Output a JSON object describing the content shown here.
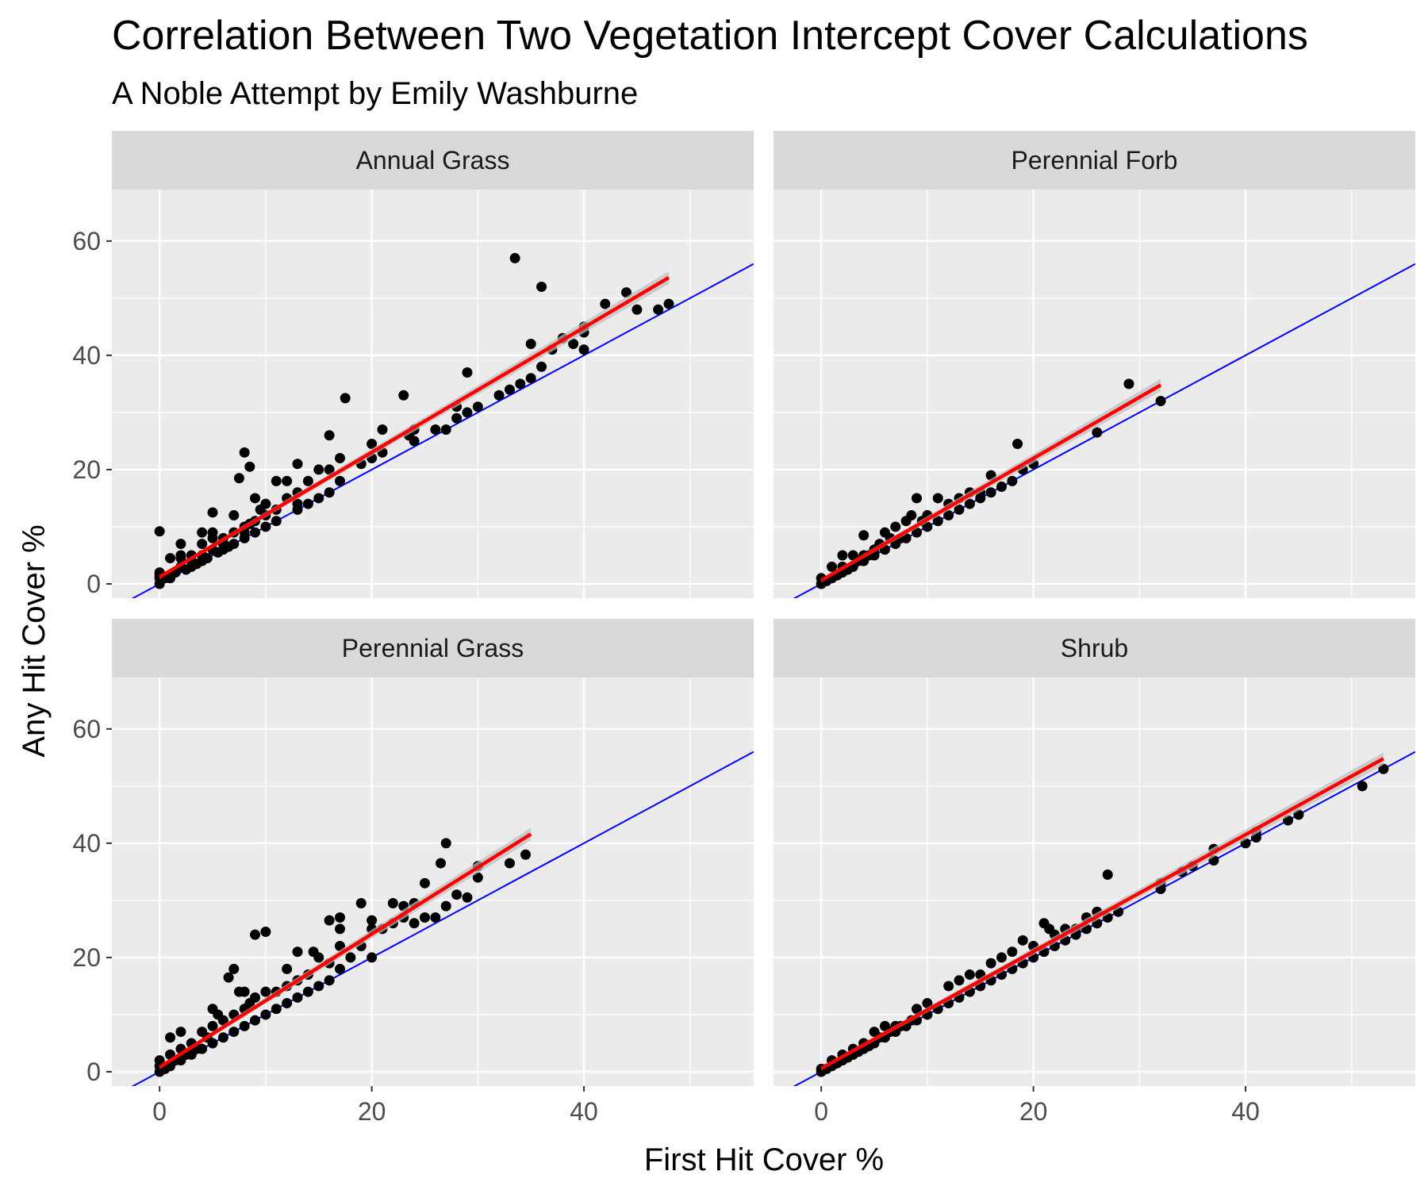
{
  "chart_data": {
    "type": "scatter",
    "title": "Correlation Between Two Vegetation Intercept Cover Calculations",
    "subtitle": "A Noble Attempt by Emily Washburne",
    "xlabel": "First Hit Cover %",
    "ylabel": "Any Hit Cover %",
    "xlim": [
      -4.5,
      56
    ],
    "ylim": [
      -2.5,
      69
    ],
    "xticks": [
      0,
      20,
      40
    ],
    "yticks": [
      0,
      20,
      40,
      60
    ],
    "grid": true,
    "legend": "none",
    "colors": {
      "panel_bg": "#ebebeb",
      "strip_bg": "#d9d9d9",
      "grid": "#ffffff",
      "points": "#000000",
      "identity_line": "#0000ff",
      "fit_line": "#ff0000",
      "confidence_band": "#bdbdbd"
    },
    "identity_line": {
      "slope": 1,
      "intercept": 0
    },
    "facets": [
      {
        "label": "Annual Grass",
        "fit": {
          "x": [
            0,
            48
          ],
          "y": [
            1.2,
            53.6
          ]
        },
        "points": [
          [
            0,
            9.2
          ],
          [
            0,
            0
          ],
          [
            0,
            1
          ],
          [
            0,
            1.5
          ],
          [
            0,
            2
          ],
          [
            0.5,
            1
          ],
          [
            1,
            4.5
          ],
          [
            1,
            1
          ],
          [
            1.5,
            2
          ],
          [
            2,
            3
          ],
          [
            2,
            4.5
          ],
          [
            2,
            5
          ],
          [
            2,
            7
          ],
          [
            2.5,
            2.5
          ],
          [
            3,
            3
          ],
          [
            3,
            4
          ],
          [
            3,
            5
          ],
          [
            3.5,
            3.5
          ],
          [
            4,
            4
          ],
          [
            4,
            5
          ],
          [
            4,
            7
          ],
          [
            4,
            9
          ],
          [
            4.5,
            4.5
          ],
          [
            5,
            6
          ],
          [
            5,
            8
          ],
          [
            5,
            9
          ],
          [
            5,
            12.5
          ],
          [
            5.5,
            5.5
          ],
          [
            6,
            6
          ],
          [
            6,
            7
          ],
          [
            6,
            8
          ],
          [
            6.5,
            6.5
          ],
          [
            7,
            7
          ],
          [
            7,
            9
          ],
          [
            7,
            12
          ],
          [
            7.5,
            18.5
          ],
          [
            8,
            8
          ],
          [
            8,
            9
          ],
          [
            8,
            10
          ],
          [
            8,
            23
          ],
          [
            8.5,
            20.5
          ],
          [
            8.5,
            10.5
          ],
          [
            9,
            9
          ],
          [
            9,
            11
          ],
          [
            9,
            15
          ],
          [
            9.5,
            13
          ],
          [
            10,
            10
          ],
          [
            10,
            12
          ],
          [
            10,
            14
          ],
          [
            11,
            11
          ],
          [
            11,
            13
          ],
          [
            11,
            18
          ],
          [
            12,
            15
          ],
          [
            12,
            18
          ],
          [
            13,
            13
          ],
          [
            13,
            14
          ],
          [
            13,
            16
          ],
          [
            13,
            21
          ],
          [
            14,
            14
          ],
          [
            14,
            18
          ],
          [
            15,
            15
          ],
          [
            15,
            20
          ],
          [
            16,
            16
          ],
          [
            16,
            20
          ],
          [
            16,
            26
          ],
          [
            17,
            18
          ],
          [
            17,
            22
          ],
          [
            17.5,
            32.5
          ],
          [
            19,
            21
          ],
          [
            20,
            22
          ],
          [
            20,
            24.5
          ],
          [
            21,
            23
          ],
          [
            21,
            27
          ],
          [
            23,
            33
          ],
          [
            23.5,
            26
          ],
          [
            24,
            25
          ],
          [
            24,
            27
          ],
          [
            26,
            27
          ],
          [
            27,
            27
          ],
          [
            28,
            29
          ],
          [
            28,
            31
          ],
          [
            29,
            30
          ],
          [
            29,
            37
          ],
          [
            30,
            31
          ],
          [
            32,
            33
          ],
          [
            33,
            34
          ],
          [
            33.5,
            57
          ],
          [
            34,
            35
          ],
          [
            35,
            36
          ],
          [
            35,
            42
          ],
          [
            36,
            38
          ],
          [
            36,
            52
          ],
          [
            37,
            41
          ],
          [
            38,
            43
          ],
          [
            39,
            42
          ],
          [
            40,
            41
          ],
          [
            40,
            44
          ],
          [
            40,
            45
          ],
          [
            42,
            49
          ],
          [
            44,
            51
          ],
          [
            45,
            48
          ],
          [
            47,
            48
          ],
          [
            48,
            49
          ]
        ]
      },
      {
        "label": "Perennial Forb",
        "fit": {
          "x": [
            0,
            32
          ],
          "y": [
            0.6,
            34.8
          ]
        },
        "points": [
          [
            0,
            0
          ],
          [
            0,
            1
          ],
          [
            0.5,
            0.5
          ],
          [
            1,
            1
          ],
          [
            1,
            3
          ],
          [
            1.5,
            1.5
          ],
          [
            2,
            2
          ],
          [
            2,
            3
          ],
          [
            2,
            5
          ],
          [
            2.5,
            2.5
          ],
          [
            3,
            3
          ],
          [
            3,
            5
          ],
          [
            3.5,
            4
          ],
          [
            4,
            4
          ],
          [
            4,
            5
          ],
          [
            4,
            8.5
          ],
          [
            4.5,
            5
          ],
          [
            5,
            5
          ],
          [
            5,
            6
          ],
          [
            5.5,
            7
          ],
          [
            6,
            6
          ],
          [
            6,
            9
          ],
          [
            6.5,
            8
          ],
          [
            7,
            7
          ],
          [
            7,
            10
          ],
          [
            7.5,
            8
          ],
          [
            8,
            8
          ],
          [
            8,
            11
          ],
          [
            8.5,
            12
          ],
          [
            9,
            9
          ],
          [
            9,
            15
          ],
          [
            9.5,
            11
          ],
          [
            10,
            10
          ],
          [
            10,
            12
          ],
          [
            11,
            11
          ],
          [
            11,
            15
          ],
          [
            12,
            12
          ],
          [
            12,
            14
          ],
          [
            13,
            13
          ],
          [
            13,
            15
          ],
          [
            14,
            14
          ],
          [
            14,
            16
          ],
          [
            15,
            15
          ],
          [
            15,
            16
          ],
          [
            16,
            16
          ],
          [
            16,
            19
          ],
          [
            17,
            17
          ],
          [
            18,
            18
          ],
          [
            18.5,
            24.5
          ],
          [
            19,
            20
          ],
          [
            20,
            21
          ],
          [
            26,
            26.5
          ],
          [
            29,
            35
          ],
          [
            32,
            32
          ]
        ]
      },
      {
        "label": "Perennial Grass",
        "fit": {
          "x": [
            0,
            35
          ],
          "y": [
            0.8,
            41.6
          ]
        },
        "points": [
          [
            0,
            0
          ],
          [
            0,
            1
          ],
          [
            0,
            2
          ],
          [
            0.5,
            0.5
          ],
          [
            1,
            1
          ],
          [
            1,
            3
          ],
          [
            1,
            6
          ],
          [
            1.5,
            2
          ],
          [
            2,
            2
          ],
          [
            2,
            4
          ],
          [
            2,
            7
          ],
          [
            2.5,
            3
          ],
          [
            3,
            3
          ],
          [
            3,
            5
          ],
          [
            3.5,
            4
          ],
          [
            4,
            4
          ],
          [
            4,
            7
          ],
          [
            4.5,
            6
          ],
          [
            5,
            5
          ],
          [
            5,
            8
          ],
          [
            5,
            11
          ],
          [
            5.5,
            10
          ],
          [
            6,
            6
          ],
          [
            6,
            9
          ],
          [
            6.5,
            16.5
          ],
          [
            7,
            7
          ],
          [
            7,
            10
          ],
          [
            7,
            18
          ],
          [
            7.5,
            14
          ],
          [
            8,
            8
          ],
          [
            8,
            11
          ],
          [
            8,
            14
          ],
          [
            8.5,
            12
          ],
          [
            9,
            9
          ],
          [
            9,
            13
          ],
          [
            9,
            24
          ],
          [
            10,
            10
          ],
          [
            10,
            14
          ],
          [
            10,
            24.5
          ],
          [
            11,
            11
          ],
          [
            11,
            14
          ],
          [
            12,
            12
          ],
          [
            12,
            15
          ],
          [
            12,
            18
          ],
          [
            13,
            13
          ],
          [
            13,
            16
          ],
          [
            13,
            21
          ],
          [
            14,
            14
          ],
          [
            14,
            17
          ],
          [
            14.5,
            21
          ],
          [
            15,
            15
          ],
          [
            15,
            20
          ],
          [
            16,
            16
          ],
          [
            16,
            19
          ],
          [
            16,
            26.5
          ],
          [
            17,
            18
          ],
          [
            17,
            22
          ],
          [
            17,
            25
          ],
          [
            17,
            27
          ],
          [
            18,
            20
          ],
          [
            19,
            22
          ],
          [
            19,
            29.5
          ],
          [
            20,
            20
          ],
          [
            20,
            25
          ],
          [
            20,
            26.5
          ],
          [
            21,
            25
          ],
          [
            22,
            26
          ],
          [
            22,
            29.5
          ],
          [
            23,
            29
          ],
          [
            23,
            27
          ],
          [
            24,
            26
          ],
          [
            24,
            29.5
          ],
          [
            25,
            27
          ],
          [
            25,
            33
          ],
          [
            26,
            27
          ],
          [
            26.5,
            36.5
          ],
          [
            27,
            29
          ],
          [
            27,
            40
          ],
          [
            28,
            31
          ],
          [
            29,
            30.5
          ],
          [
            30,
            34
          ],
          [
            30,
            36
          ],
          [
            33,
            36.5
          ],
          [
            34.5,
            38
          ]
        ]
      },
      {
        "label": "Shrub",
        "fit": {
          "x": [
            0,
            53
          ],
          "y": [
            0.6,
            54.8
          ]
        },
        "points": [
          [
            0,
            0
          ],
          [
            0,
            0.5
          ],
          [
            0.5,
            0.5
          ],
          [
            1,
            1
          ],
          [
            1,
            2
          ],
          [
            1.5,
            1.5
          ],
          [
            2,
            2
          ],
          [
            2,
            3
          ],
          [
            2.5,
            2.5
          ],
          [
            3,
            3
          ],
          [
            3,
            4
          ],
          [
            3.5,
            3.5
          ],
          [
            4,
            4
          ],
          [
            4,
            5
          ],
          [
            4.5,
            4.5
          ],
          [
            5,
            5
          ],
          [
            5,
            7
          ],
          [
            5.5,
            6
          ],
          [
            6,
            6
          ],
          [
            6,
            8
          ],
          [
            6.5,
            7
          ],
          [
            7,
            7
          ],
          [
            7,
            8
          ],
          [
            7.5,
            8
          ],
          [
            8,
            8
          ],
          [
            8.5,
            9
          ],
          [
            9,
            9
          ],
          [
            9,
            11
          ],
          [
            10,
            10
          ],
          [
            10,
            12
          ],
          [
            11,
            11
          ],
          [
            12,
            12
          ],
          [
            12,
            15
          ],
          [
            13,
            13
          ],
          [
            13,
            16
          ],
          [
            14,
            14
          ],
          [
            14,
            17
          ],
          [
            15,
            15
          ],
          [
            15,
            17
          ],
          [
            16,
            16
          ],
          [
            16,
            19
          ],
          [
            17,
            17
          ],
          [
            17,
            20
          ],
          [
            18,
            18
          ],
          [
            18,
            21
          ],
          [
            19,
            19
          ],
          [
            19,
            23
          ],
          [
            20,
            20
          ],
          [
            20,
            22
          ],
          [
            21,
            21
          ],
          [
            21,
            26
          ],
          [
            21.5,
            25
          ],
          [
            22,
            22
          ],
          [
            22,
            24
          ],
          [
            23,
            23
          ],
          [
            23,
            25
          ],
          [
            24,
            24
          ],
          [
            24,
            25
          ],
          [
            25,
            25
          ],
          [
            25,
            27
          ],
          [
            26,
            26
          ],
          [
            26,
            28
          ],
          [
            27,
            27
          ],
          [
            27,
            34.5
          ],
          [
            28,
            28
          ],
          [
            32,
            32
          ],
          [
            32,
            33
          ],
          [
            34,
            35
          ],
          [
            35,
            36
          ],
          [
            37,
            37
          ],
          [
            37,
            39
          ],
          [
            40,
            40
          ],
          [
            41,
            41
          ],
          [
            41,
            42
          ],
          [
            44,
            44
          ],
          [
            45,
            45
          ],
          [
            51,
            50
          ],
          [
            53,
            53
          ]
        ]
      }
    ]
  }
}
